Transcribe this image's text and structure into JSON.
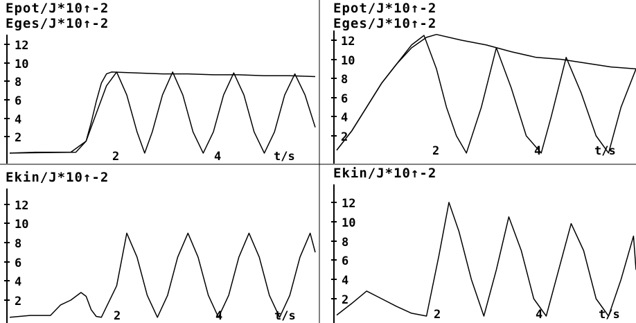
{
  "chart_data": [
    {
      "type": "line",
      "ylabel_lines": [
        "Epot/J*10↑-2",
        "Eges/J*10↑-2"
      ],
      "x_unit_label": "t/s",
      "x_tick_labels": [
        2,
        4
      ],
      "y_tick_labels": [
        2,
        4,
        6,
        8,
        10,
        12
      ],
      "xlim": [
        0,
        6.0
      ],
      "ylim": [
        0,
        13
      ],
      "series": [
        {
          "x": [
            0,
            0.5,
            1.2,
            1.5,
            1.6,
            1.7,
            1.8,
            1.9,
            2.0,
            2.5,
            3.0,
            3.5,
            4.0,
            4.5,
            5.0,
            5.5,
            6.0
          ],
          "y": [
            0.2,
            0.3,
            0.3,
            1.5,
            3.5,
            5.8,
            7.8,
            8.8,
            9.0,
            8.9,
            8.8,
            8.8,
            8.7,
            8.7,
            8.6,
            8.6,
            8.5
          ]
        },
        {
          "x": [
            0,
            1.3,
            1.5,
            1.7,
            1.9,
            2.1,
            2.3,
            2.5,
            2.65,
            2.8,
            3.0,
            3.2,
            3.4,
            3.6,
            3.8,
            4.0,
            4.2,
            4.4,
            4.6,
            4.8,
            5.0,
            5.2,
            5.4,
            5.6,
            5.8,
            6.0
          ],
          "y": [
            0.2,
            0.3,
            1.5,
            4.5,
            7.5,
            9.0,
            6.5,
            2.5,
            0.2,
            2.5,
            6.5,
            9.0,
            6.5,
            2.5,
            0.2,
            2.5,
            6.5,
            8.9,
            6.5,
            2.5,
            0.2,
            2.5,
            6.5,
            8.8,
            6.5,
            3.0
          ]
        }
      ]
    },
    {
      "type": "line",
      "ylabel_lines": [
        "Epot/J*10↑-2",
        "Eges/J*10↑-2"
      ],
      "x_unit_label": "t/s",
      "x_tick_labels": [
        2,
        4
      ],
      "y_tick_labels": [
        2,
        4,
        6,
        8,
        10,
        12
      ],
      "xlim": [
        0,
        6.0
      ],
      "ylim": [
        0,
        13
      ],
      "series": [
        {
          "x": [
            0,
            0.3,
            0.6,
            0.9,
            1.2,
            1.5,
            1.8,
            2.0,
            2.5,
            3.0,
            3.5,
            4.0,
            4.5,
            5.0,
            5.5,
            6.0
          ],
          "y": [
            0.5,
            2.5,
            5.0,
            7.5,
            9.5,
            11.2,
            12.3,
            12.6,
            12.0,
            11.5,
            10.8,
            10.2,
            10.0,
            9.6,
            9.2,
            9.0
          ]
        },
        {
          "x": [
            0,
            0.3,
            0.6,
            0.9,
            1.2,
            1.5,
            1.75,
            2.0,
            2.2,
            2.4,
            2.6,
            2.9,
            3.2,
            3.5,
            3.8,
            4.1,
            4.3,
            4.6,
            4.9,
            5.2,
            5.45,
            5.7,
            6.0
          ],
          "y": [
            0.5,
            2.5,
            5.0,
            7.5,
            9.5,
            11.5,
            12.5,
            9.0,
            5.0,
            2.0,
            0.2,
            5.0,
            11.2,
            7.0,
            2.0,
            0.2,
            4.0,
            10.2,
            6.5,
            2.0,
            0.2,
            5.0,
            9.0
          ]
        }
      ]
    },
    {
      "type": "line",
      "ylabel_lines": [
        "Ekin/J*10↑-2"
      ],
      "x_unit_label": "t/s",
      "x_tick_labels": [
        2,
        4
      ],
      "y_tick_labels": [
        2,
        4,
        6,
        8,
        10,
        12
      ],
      "xlim": [
        0,
        6.0
      ],
      "ylim": [
        0,
        13
      ],
      "series": [
        {
          "x": [
            0,
            0.4,
            0.8,
            1.0,
            1.2,
            1.4,
            1.5,
            1.6,
            1.7,
            1.8,
            2.1,
            2.3,
            2.5,
            2.7,
            2.9,
            3.1,
            3.3,
            3.5,
            3.7,
            3.9,
            4.1,
            4.3,
            4.5,
            4.7,
            4.9,
            5.1,
            5.3,
            5.5,
            5.7,
            5.9,
            6.0
          ],
          "y": [
            0.2,
            0.4,
            0.4,
            1.5,
            2.0,
            2.8,
            2.4,
            1.0,
            0.3,
            0.2,
            3.5,
            9.0,
            6.5,
            2.5,
            0.2,
            2.5,
            6.5,
            9.0,
            6.5,
            2.5,
            0.2,
            2.5,
            6.5,
            9.0,
            6.5,
            2.5,
            0.2,
            2.5,
            6.5,
            9.0,
            7.0
          ]
        }
      ]
    },
    {
      "type": "line",
      "ylabel_lines": [
        "Ekin/J*10↑-2"
      ],
      "x_unit_label": "t/s",
      "x_tick_labels": [
        2,
        4
      ],
      "y_tick_labels": [
        2,
        4,
        6,
        8,
        10,
        12
      ],
      "xlim": [
        0,
        6.0
      ],
      "ylim": [
        0,
        13
      ],
      "series": [
        {
          "x": [
            0,
            0.3,
            0.6,
            0.9,
            1.2,
            1.5,
            1.8,
            2.05,
            2.25,
            2.45,
            2.7,
            2.95,
            3.2,
            3.45,
            3.7,
            3.95,
            4.2,
            4.45,
            4.7,
            4.95,
            5.2,
            5.45,
            5.7,
            5.95,
            6.0
          ],
          "y": [
            0.3,
            1.5,
            2.8,
            2.0,
            1.2,
            0.5,
            0.2,
            6.5,
            12.0,
            9.0,
            4.0,
            0.2,
            5.0,
            10.5,
            7.0,
            2.0,
            0.2,
            5.0,
            9.8,
            7.0,
            2.0,
            0.2,
            4.0,
            8.5,
            5.0
          ]
        }
      ]
    }
  ]
}
